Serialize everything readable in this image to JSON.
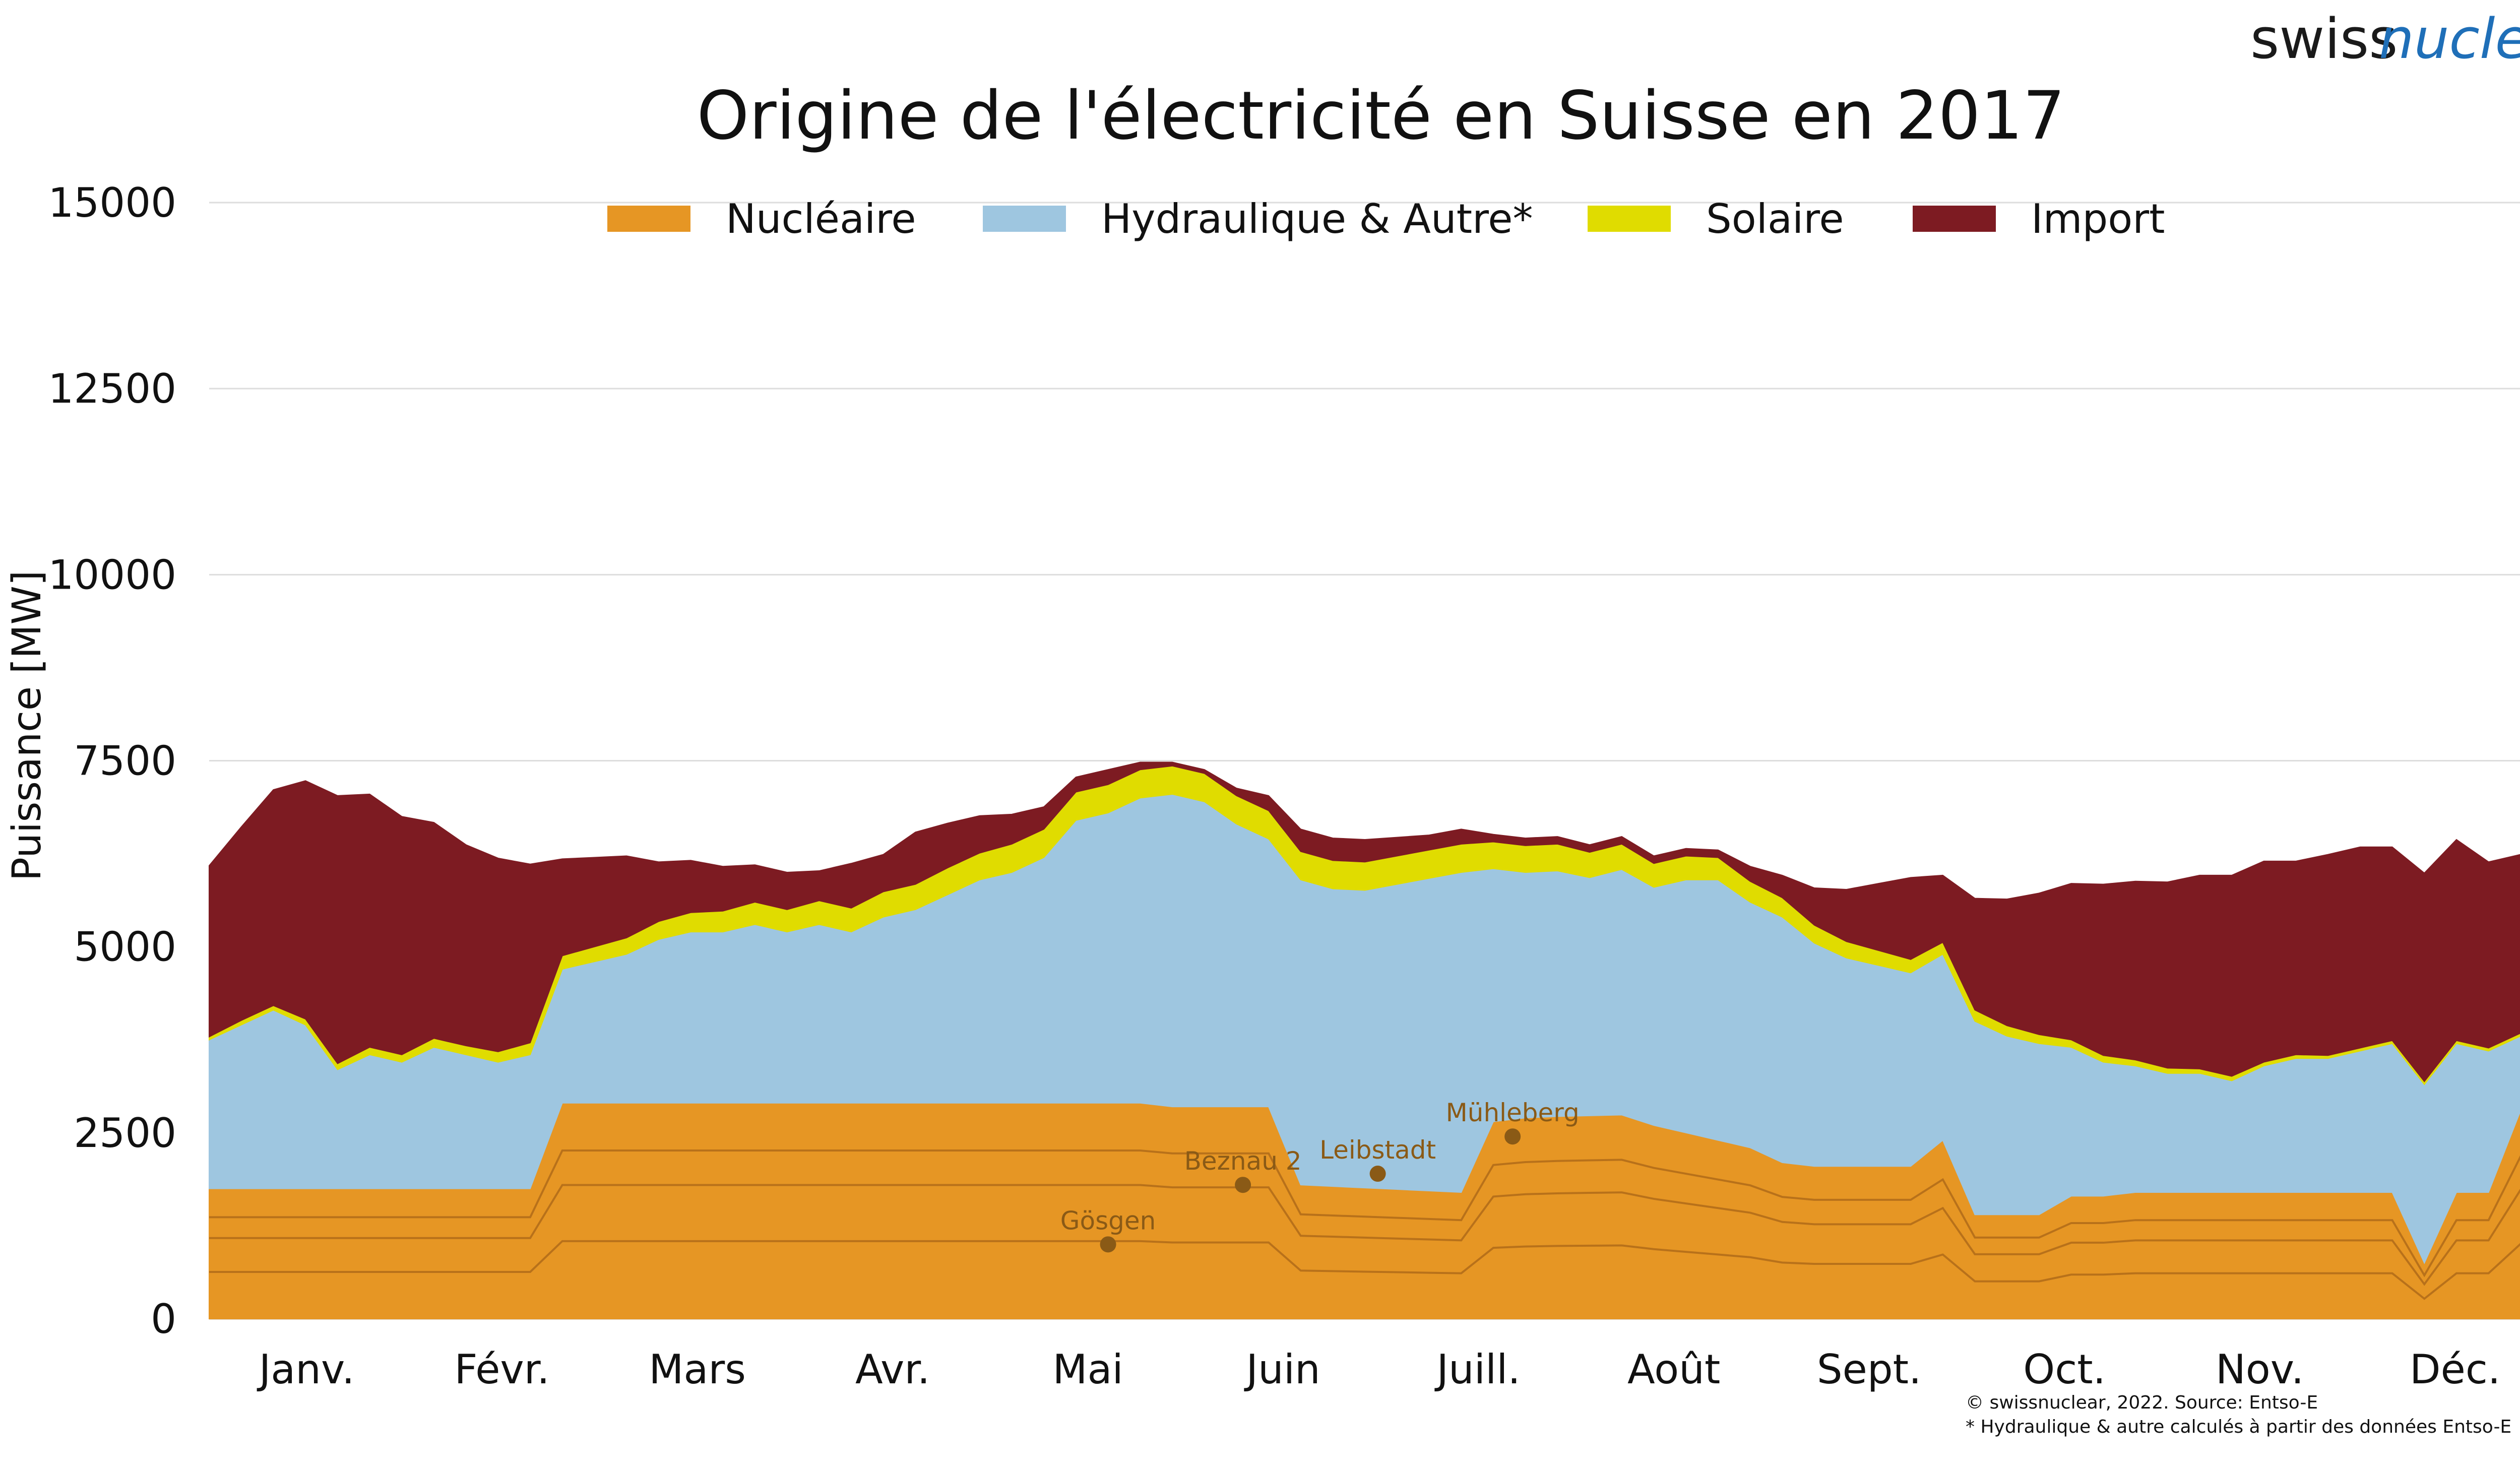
{
  "brand": {
    "part1": "swiss",
    "part2": "nuclear"
  },
  "footer": {
    "copyright": "© swissnuclear, 2022. Source: Entso-E",
    "note": "* Hydraulique & autre calculés à partir des données Entso-E"
  },
  "chart_data": {
    "type": "area",
    "title": "Origine de l'électricité en Suisse en 2017",
    "xlabel": "",
    "ylabel": "Puissance [MW]",
    "ylim": [
      0,
      15000
    ],
    "yticks": [
      0,
      2500,
      5000,
      7500,
      10000,
      12500,
      15000
    ],
    "grid": true,
    "legend_position": "top-center",
    "months": [
      "Janv.",
      "Févr.",
      "Mars",
      "Avr.",
      "Mai",
      "Juin",
      "Juill.",
      "Août",
      "Sept.",
      "Oct.",
      "Nov.",
      "Déc."
    ],
    "x": [
      0,
      5,
      10,
      15,
      20,
      25,
      30,
      35,
      40,
      45,
      50,
      55,
      60,
      65,
      70,
      75,
      80,
      85,
      90,
      95,
      100,
      105,
      110,
      115,
      120,
      125,
      130,
      135,
      140,
      145,
      150,
      155,
      160,
      165,
      170,
      175,
      180,
      185,
      190,
      195,
      200,
      205,
      210,
      215,
      220,
      225,
      230,
      235,
      240,
      245,
      250,
      255,
      260,
      265,
      270,
      275,
      280,
      285,
      290,
      295,
      300,
      305,
      310,
      315,
      320,
      325,
      330,
      335,
      340,
      345,
      350,
      355,
      360,
      365
    ],
    "series": [
      {
        "name": "Nucléaire",
        "color": "#e69624",
        "values": [
          1750,
          1750,
          1750,
          1750,
          1750,
          1750,
          1750,
          1750,
          1750,
          1750,
          1750,
          2900,
          2900,
          2900,
          2900,
          2900,
          2900,
          2900,
          2900,
          2900,
          2900,
          2900,
          2900,
          2900,
          2900,
          2900,
          2900,
          2900,
          2900,
          2900,
          2850,
          2850,
          2850,
          2850,
          1800,
          1780,
          1760,
          1740,
          1720,
          1700,
          2650,
          2700,
          2720,
          2730,
          2740,
          2600,
          2500,
          2400,
          2300,
          2100,
          2050,
          2050,
          2050,
          2050,
          2400,
          1400,
          1400,
          1400,
          1650,
          1650,
          1700,
          1700,
          1700,
          1700,
          1700,
          1700,
          1700,
          1700,
          1700,
          750,
          1700,
          1700,
          2800,
          2800
        ]
      },
      {
        "name": "Hydraulique & Autre*",
        "color": "#9ec6e0",
        "values": [
          2000,
          2200,
          2400,
          2200,
          1600,
          1800,
          1700,
          1900,
          1800,
          1700,
          1800,
          1800,
          1900,
          2000,
          2200,
          2300,
          2300,
          2400,
          2300,
          2400,
          2300,
          2500,
          2600,
          2800,
          3000,
          3100,
          3300,
          3800,
          3900,
          4100,
          4200,
          4100,
          3800,
          3600,
          4100,
          4000,
          4000,
          4100,
          4200,
          4300,
          3400,
          3300,
          3300,
          3200,
          3300,
          3200,
          3400,
          3500,
          3300,
          3300,
          3000,
          2800,
          2700,
          2600,
          2500,
          2600,
          2400,
          2300,
          2000,
          1800,
          1700,
          1600,
          1600,
          1500,
          1700,
          1800,
          1800,
          1900,
          2000,
          2400,
          2000,
          1900,
          1000,
          1000
        ]
      },
      {
        "name": "Solaire",
        "color": "#e0dc00",
        "values": [
          40,
          60,
          60,
          80,
          80,
          100,
          100,
          120,
          120,
          140,
          160,
          180,
          200,
          220,
          240,
          260,
          280,
          300,
          300,
          320,
          320,
          340,
          340,
          360,
          360,
          380,
          380,
          380,
          380,
          380,
          380,
          380,
          380,
          380,
          380,
          380,
          380,
          380,
          380,
          380,
          360,
          360,
          360,
          340,
          340,
          320,
          320,
          300,
          280,
          260,
          240,
          220,
          200,
          180,
          160,
          150,
          140,
          120,
          100,
          90,
          80,
          70,
          60,
          60,
          50,
          50,
          40,
          40,
          40,
          40,
          40,
          40,
          40,
          40
        ]
      },
      {
        "name": "Import",
        "color": "#7d1b22",
        "values": [
          2300,
          2600,
          2900,
          3200,
          3600,
          3400,
          3200,
          2900,
          2700,
          2600,
          2400,
          1300,
          1200,
          1100,
          800,
          700,
          600,
          500,
          500,
          400,
          600,
          500,
          700,
          600,
          500,
          400,
          300,
          200,
          200,
          100,
          50,
          50,
          100,
          200,
          300,
          300,
          300,
          250,
          200,
          200,
          100,
          100,
          100,
          100,
          100,
          100,
          100,
          100,
          200,
          300,
          500,
          700,
          900,
          1100,
          900,
          1500,
          1700,
          1900,
          2100,
          2300,
          2400,
          2500,
          2600,
          2700,
          2700,
          2600,
          2700,
          2700,
          2600,
          2800,
          2700,
          2500,
          2400,
          2300
        ]
      }
    ],
    "annotations": [
      {
        "label": "Gösgen",
        "x": 140,
        "y": 1000
      },
      {
        "label": "Beznau 2",
        "x": 161,
        "y": 1800
      },
      {
        "label": "Leibstadt",
        "x": 182,
        "y": 1950
      },
      {
        "label": "Mühleberg",
        "x": 203,
        "y": 2450
      }
    ]
  }
}
